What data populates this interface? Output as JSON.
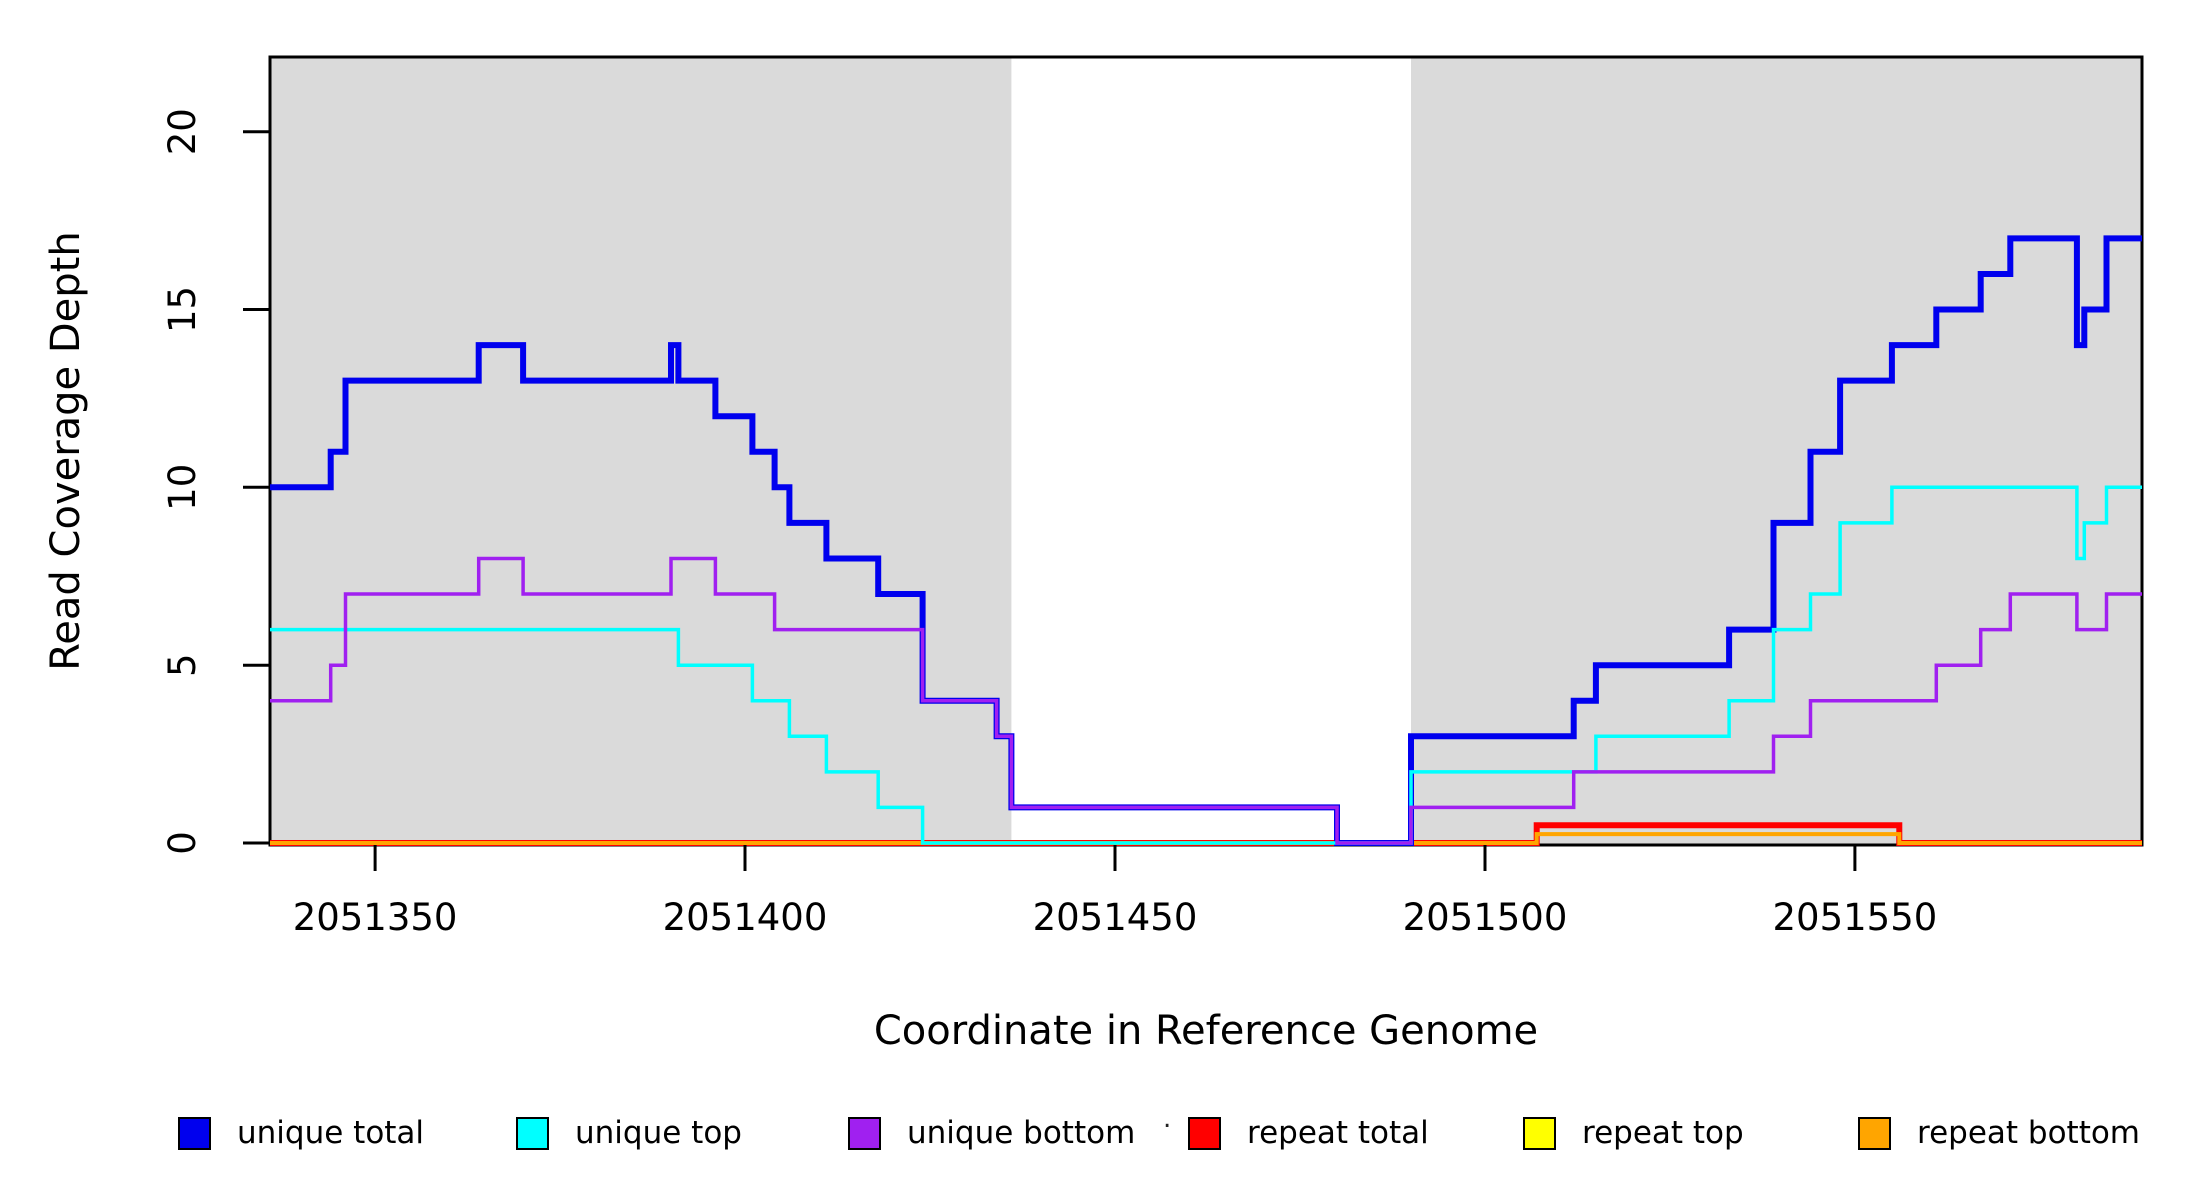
{
  "chart_data": {
    "type": "line",
    "subtype": "step-after",
    "title": "",
    "xlabel": "Coordinate in Reference Genome",
    "ylabel": "Read Coverage Depth",
    "xlim": [
      2051335.8,
      2051588.8
    ],
    "ylim": [
      0,
      22.1
    ],
    "x_ticks": [
      2051350,
      2051400,
      2051450,
      2051500,
      2051550
    ],
    "y_ticks": [
      0,
      5,
      10,
      15,
      20
    ],
    "grid": false,
    "legend_position": "bottom",
    "background_color": "#ffffff",
    "shaded_regions": [
      {
        "x0": 2051335.8,
        "x1": 2051436,
        "color": "#DADADA"
      },
      {
        "x0": 2051490,
        "x1": 2051588.8,
        "color": "#DADADA"
      }
    ],
    "x_end": 2051588.8,
    "series": [
      {
        "name": "repeat total",
        "color": "#FF0000",
        "line_width": 6,
        "steps": [
          [
            2051335.8,
            0
          ],
          [
            2051507,
            0.5
          ],
          [
            2051556,
            0
          ]
        ]
      },
      {
        "name": "repeat top",
        "color": "#FFFF00",
        "line_width": 3.5,
        "steps": [
          [
            2051335.8,
            0
          ],
          [
            2051507,
            0.25
          ],
          [
            2051556,
            0
          ]
        ]
      },
      {
        "name": "repeat bottom",
        "color": "#FFA500",
        "line_width": 4,
        "steps": [
          [
            2051335.8,
            0
          ],
          [
            2051507,
            0.25
          ],
          [
            2051556,
            0
          ]
        ]
      },
      {
        "name": "unique total",
        "color": "#0000EE",
        "line_width": 6,
        "steps": [
          [
            2051335.8,
            10
          ],
          [
            2051344,
            11
          ],
          [
            2051346,
            13
          ],
          [
            2051364,
            14
          ],
          [
            2051370,
            13
          ],
          [
            2051390,
            14
          ],
          [
            2051391,
            13
          ],
          [
            2051396,
            12
          ],
          [
            2051401,
            11
          ],
          [
            2051404,
            10
          ],
          [
            2051406,
            9
          ],
          [
            2051411,
            8
          ],
          [
            2051418,
            7
          ],
          [
            2051424,
            4
          ],
          [
            2051434,
            3
          ],
          [
            2051436,
            1
          ],
          [
            2051480,
            0
          ],
          [
            2051490,
            3
          ],
          [
            2051512,
            4
          ],
          [
            2051515,
            5
          ],
          [
            2051533,
            6
          ],
          [
            2051539,
            9
          ],
          [
            2051544,
            11
          ],
          [
            2051548,
            13
          ],
          [
            2051555,
            14
          ],
          [
            2051561,
            15
          ],
          [
            2051567,
            16
          ],
          [
            2051571,
            17
          ],
          [
            2051580,
            14
          ],
          [
            2051581,
            15
          ],
          [
            2051584,
            17
          ]
        ]
      },
      {
        "name": "unique top",
        "color": "#00FFFF",
        "line_width": 3.5,
        "steps": [
          [
            2051335.8,
            6
          ],
          [
            2051391,
            5
          ],
          [
            2051401,
            4
          ],
          [
            2051406,
            3
          ],
          [
            2051411,
            2
          ],
          [
            2051418,
            1
          ],
          [
            2051424,
            0
          ],
          [
            2051490,
            2
          ],
          [
            2051515,
            3
          ],
          [
            2051533,
            4
          ],
          [
            2051539,
            6
          ],
          [
            2051544,
            7
          ],
          [
            2051548,
            9
          ],
          [
            2051555,
            10
          ],
          [
            2051580,
            8
          ],
          [
            2051581,
            9
          ],
          [
            2051584,
            10
          ]
        ]
      },
      {
        "name": "unique bottom",
        "color": "#A020F0",
        "line_width": 3.5,
        "steps": [
          [
            2051335.8,
            4
          ],
          [
            2051344,
            5
          ],
          [
            2051346,
            7
          ],
          [
            2051364,
            8
          ],
          [
            2051370,
            7
          ],
          [
            2051390,
            8
          ],
          [
            2051396,
            7
          ],
          [
            2051404,
            6
          ],
          [
            2051424,
            4
          ],
          [
            2051434,
            3
          ],
          [
            2051436,
            1
          ],
          [
            2051480,
            0
          ],
          [
            2051490,
            1
          ],
          [
            2051512,
            2
          ],
          [
            2051539,
            3
          ],
          [
            2051544,
            4
          ],
          [
            2051561,
            5
          ],
          [
            2051567,
            6
          ],
          [
            2051571,
            7
          ],
          [
            2051580,
            6
          ],
          [
            2051584,
            7
          ]
        ]
      }
    ]
  },
  "legend": {
    "items": [
      {
        "label": "unique total",
        "color": "#0000EE"
      },
      {
        "label": "unique top",
        "color": "#00FFFF"
      },
      {
        "label": "unique bottom",
        "color": "#A020F0"
      },
      {
        "label": "repeat total",
        "color": "#FF0000"
      },
      {
        "label": "repeat top",
        "color": "#FFFF00"
      },
      {
        "label": "repeat bottom",
        "color": "#FFA500"
      }
    ],
    "stray_mark": "."
  }
}
